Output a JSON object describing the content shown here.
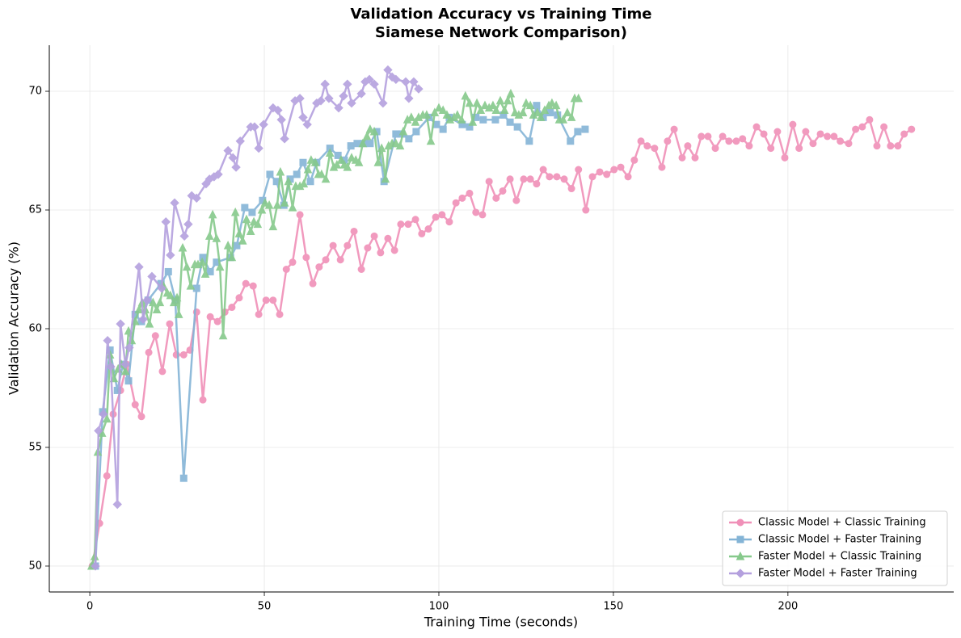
{
  "chart_data": {
    "type": "line",
    "title": "Validation Accuracy vs Training Time",
    "subtitle": "Siamese Network Comparison)",
    "xlabel": "Training Time (seconds)",
    "ylabel": "Validation Accuracy (%)",
    "xlim": [
      -11.6,
      247.5
    ],
    "ylim": [
      48.91,
      71.94
    ],
    "xticks": [
      0,
      50,
      100,
      150,
      200
    ],
    "yticks": [
      50,
      55,
      60,
      65,
      70
    ],
    "grid": true,
    "legend": "lower right",
    "series": [
      {
        "name": "Classic Model + Classic Training",
        "color": "#f090b8",
        "marker": "circle",
        "x": [
          0.7,
          2.8,
          4.9,
          6.7,
          8.8,
          10.6,
          13.0,
          14.8,
          16.9,
          18.8,
          20.8,
          22.9,
          24.8,
          26.9,
          28.7,
          30.6,
          32.4,
          34.5,
          36.6,
          38.7,
          40.7,
          42.8,
          44.7,
          46.8,
          48.4,
          50.5,
          52.5,
          54.4,
          56.3,
          58.1,
          60.2,
          62.0,
          63.9,
          65.7,
          67.6,
          69.7,
          71.8,
          73.8,
          75.7,
          77.8,
          79.6,
          81.5,
          83.3,
          85.4,
          87.3,
          89.1,
          91.2,
          93.3,
          95.1,
          97.0,
          99.1,
          100.9,
          103.0,
          104.9,
          106.7,
          108.8,
          110.6,
          112.5,
          114.4,
          116.4,
          118.3,
          120.4,
          122.2,
          124.3,
          126.2,
          128.0,
          129.9,
          131.7,
          133.8,
          135.9,
          138.0,
          140.0,
          142.1,
          144.0,
          146.1,
          148.1,
          150.2,
          152.1,
          154.2,
          156.0,
          157.9,
          159.7,
          161.8,
          163.9,
          165.5,
          167.4,
          169.7,
          171.3,
          173.4,
          175.2,
          177.1,
          179.2,
          181.3,
          183.1,
          185.2,
          187.0,
          188.9,
          191.0,
          193.1,
          195.1,
          197.0,
          199.1,
          201.4,
          203.2,
          205.1,
          207.2,
          209.3,
          211.3,
          213.2,
          215.0,
          217.4,
          219.4,
          221.3,
          223.4,
          225.5,
          227.5,
          229.4,
          231.5,
          233.3,
          235.4
        ],
        "values": [
          50.0,
          51.8,
          53.8,
          56.4,
          57.4,
          58.5,
          56.8,
          56.3,
          59.0,
          59.7,
          58.2,
          60.2,
          58.9,
          58.9,
          59.1,
          60.7,
          57.0,
          60.5,
          60.3,
          60.7,
          60.9,
          61.3,
          61.9,
          61.8,
          60.6,
          61.2,
          61.2,
          60.6,
          62.5,
          62.8,
          64.8,
          63.0,
          61.9,
          62.6,
          62.9,
          63.5,
          62.9,
          63.5,
          64.1,
          62.5,
          63.4,
          63.9,
          63.2,
          63.8,
          63.3,
          64.4,
          64.4,
          64.6,
          64.0,
          64.2,
          64.7,
          64.8,
          64.5,
          65.3,
          65.5,
          65.7,
          64.9,
          64.8,
          66.2,
          65.5,
          65.8,
          66.3,
          65.4,
          66.3,
          66.3,
          66.1,
          66.7,
          66.4,
          66.4,
          66.3,
          65.9,
          66.7,
          65.0,
          66.4,
          66.6,
          66.5,
          66.7,
          66.8,
          66.4,
          67.1,
          67.9,
          67.7,
          67.6,
          66.8,
          67.9,
          68.4,
          67.2,
          67.7,
          67.2,
          68.1,
          68.1,
          67.6,
          68.1,
          67.9,
          67.9,
          68.0,
          67.7,
          68.5,
          68.2,
          67.6,
          68.3,
          67.2,
          68.6,
          67.6,
          68.3,
          67.8,
          68.2,
          68.1,
          68.1,
          67.9,
          67.8,
          68.4,
          68.5,
          68.8,
          67.7,
          68.5,
          67.7,
          67.7,
          68.2,
          68.4
        ]
      },
      {
        "name": "Classic Model + Faster Training",
        "color": "#84b4d6",
        "marker": "square",
        "x": [
          1.6,
          3.7,
          5.8,
          7.9,
          9.5,
          11.1,
          13.0,
          14.8,
          16.7,
          20.4,
          22.5,
          24.5,
          26.9,
          30.6,
          32.4,
          34.5,
          36.3,
          40.3,
          42.1,
          44.4,
          46.5,
          49.5,
          51.6,
          53.5,
          55.6,
          57.4,
          59.3,
          61.1,
          63.2,
          65.0,
          68.8,
          71.1,
          72.9,
          74.8,
          76.6,
          78.5,
          80.3,
          82.2,
          84.3,
          87.7,
          89.4,
          91.4,
          93.5,
          97.2,
          99.3,
          101.2,
          103.0,
          106.7,
          108.8,
          110.6,
          112.7,
          116.2,
          118.5,
          120.4,
          122.5,
          125.9,
          128.0,
          129.9,
          131.9,
          134.0,
          137.7,
          139.8,
          141.9
        ],
        "values": [
          50.0,
          56.5,
          59.1,
          57.4,
          58.5,
          57.8,
          60.6,
          60.3,
          61.2,
          61.9,
          62.4,
          61.2,
          53.7,
          61.7,
          63.0,
          62.4,
          62.8,
          63.0,
          63.5,
          65.1,
          64.9,
          65.4,
          66.5,
          66.2,
          65.2,
          66.3,
          66.5,
          67.0,
          66.2,
          67.0,
          67.6,
          67.3,
          67.1,
          67.7,
          67.8,
          67.8,
          67.8,
          68.3,
          66.2,
          68.2,
          68.2,
          68.0,
          68.3,
          68.9,
          68.6,
          68.4,
          68.9,
          68.6,
          68.5,
          68.9,
          68.8,
          68.8,
          69.0,
          68.7,
          68.5,
          67.9,
          69.4,
          68.9,
          69.1,
          69.0,
          67.9,
          68.3,
          68.4
        ]
      },
      {
        "name": "Faster Model + Classic Training",
        "color": "#86c98b",
        "marker": "triangle",
        "x": [
          0.5,
          1.4,
          2.3,
          3.5,
          4.9,
          5.8,
          6.9,
          8.1,
          9.0,
          10.2,
          11.1,
          12.0,
          13.0,
          14.1,
          15.0,
          15.9,
          17.1,
          18.1,
          19.2,
          20.1,
          21.1,
          22.2,
          23.1,
          24.1,
          25.0,
          25.5,
          26.6,
          27.8,
          28.9,
          30.1,
          31.0,
          32.2,
          33.1,
          34.3,
          35.2,
          36.3,
          37.3,
          38.2,
          39.6,
          40.7,
          41.7,
          42.8,
          43.8,
          44.9,
          46.1,
          47.0,
          48.1,
          49.3,
          50.2,
          51.4,
          52.5,
          53.7,
          54.6,
          55.8,
          56.9,
          58.1,
          59.0,
          60.2,
          61.3,
          62.5,
          63.4,
          64.6,
          65.5,
          66.4,
          67.6,
          68.8,
          69.9,
          70.8,
          72.0,
          72.9,
          73.8,
          75.0,
          76.2,
          77.1,
          78.2,
          79.4,
          80.3,
          81.5,
          82.6,
          83.6,
          84.7,
          85.6,
          86.6,
          87.7,
          88.9,
          89.8,
          91.0,
          92.1,
          93.3,
          94.2,
          95.4,
          96.5,
          97.7,
          98.8,
          100.0,
          101.2,
          102.3,
          103.2,
          104.4,
          105.3,
          106.5,
          107.6,
          108.8,
          109.7,
          110.9,
          112.0,
          113.2,
          114.4,
          115.5,
          116.4,
          117.6,
          118.8,
          119.7,
          120.6,
          121.8,
          122.9,
          124.1,
          125.0,
          126.2,
          127.1,
          128.2,
          129.2,
          130.3,
          131.5,
          132.4,
          133.6,
          134.5,
          135.6,
          136.8,
          138.0,
          138.9,
          140.0
        ],
        "values": [
          50.0,
          50.4,
          54.8,
          55.6,
          56.2,
          58.9,
          57.9,
          58.3,
          58.5,
          58.2,
          59.9,
          59.5,
          60.3,
          60.8,
          61.1,
          60.8,
          60.2,
          61.1,
          60.8,
          61.1,
          61.8,
          61.5,
          61.4,
          61.1,
          61.3,
          60.6,
          63.4,
          62.6,
          61.8,
          62.7,
          62.7,
          62.8,
          62.3,
          63.9,
          64.8,
          63.8,
          62.6,
          59.7,
          63.5,
          63.0,
          64.9,
          64.0,
          63.7,
          64.6,
          64.1,
          64.5,
          64.4,
          65.0,
          65.3,
          65.2,
          64.3,
          65.2,
          66.6,
          65.3,
          66.2,
          65.1,
          66.0,
          66.0,
          66.1,
          66.7,
          67.1,
          67.0,
          66.5,
          66.5,
          66.3,
          67.4,
          66.8,
          66.9,
          67.1,
          66.9,
          66.8,
          67.2,
          67.1,
          67.0,
          67.8,
          68.1,
          68.4,
          68.3,
          67.0,
          67.6,
          66.3,
          67.7,
          67.8,
          67.8,
          67.7,
          68.3,
          68.8,
          68.9,
          68.7,
          68.9,
          69.0,
          69.0,
          67.9,
          69.1,
          69.3,
          69.2,
          69.0,
          68.8,
          68.9,
          69.0,
          68.8,
          69.8,
          69.5,
          68.7,
          69.5,
          69.2,
          69.4,
          69.3,
          69.4,
          69.2,
          69.6,
          69.2,
          69.6,
          69.9,
          69.1,
          69.0,
          69.1,
          69.5,
          69.4,
          69.0,
          69.1,
          68.9,
          69.2,
          69.4,
          69.5,
          69.4,
          68.8,
          68.8,
          69.1,
          68.9,
          69.7,
          69.7
        ]
      },
      {
        "name": "Faster Model + Faster Training",
        "color": "#b4a0de",
        "marker": "diamond",
        "x": [
          1.6,
          2.5,
          3.9,
          5.1,
          6.0,
          7.9,
          8.8,
          10.2,
          11.3,
          14.1,
          15.3,
          16.4,
          17.8,
          20.6,
          21.8,
          23.1,
          24.3,
          27.1,
          28.2,
          29.2,
          30.6,
          33.3,
          34.3,
          35.6,
          36.8,
          39.6,
          41.0,
          41.9,
          43.1,
          46.1,
          47.2,
          48.4,
          49.8,
          52.5,
          53.9,
          54.9,
          55.8,
          58.8,
          60.2,
          61.1,
          62.3,
          65.0,
          66.2,
          67.4,
          68.5,
          71.3,
          72.7,
          73.8,
          75.0,
          77.8,
          78.9,
          80.1,
          81.5,
          84.0,
          85.4,
          86.6,
          87.7,
          90.5,
          91.4,
          92.8,
          94.2
        ],
        "values": [
          50.0,
          55.7,
          56.4,
          59.5,
          58.4,
          52.6,
          60.2,
          58.5,
          59.2,
          62.6,
          60.4,
          61.2,
          62.2,
          61.7,
          64.5,
          63.1,
          65.3,
          63.9,
          64.4,
          65.6,
          65.5,
          66.1,
          66.3,
          66.4,
          66.5,
          67.5,
          67.2,
          66.8,
          67.9,
          68.5,
          68.5,
          67.6,
          68.6,
          69.3,
          69.2,
          68.8,
          68.0,
          69.6,
          69.7,
          68.9,
          68.6,
          69.5,
          69.6,
          70.3,
          69.7,
          69.3,
          69.8,
          70.3,
          69.5,
          69.9,
          70.4,
          70.5,
          70.3,
          69.5,
          70.9,
          70.6,
          70.5,
          70.4,
          69.7,
          70.4,
          70.1
        ]
      }
    ]
  }
}
